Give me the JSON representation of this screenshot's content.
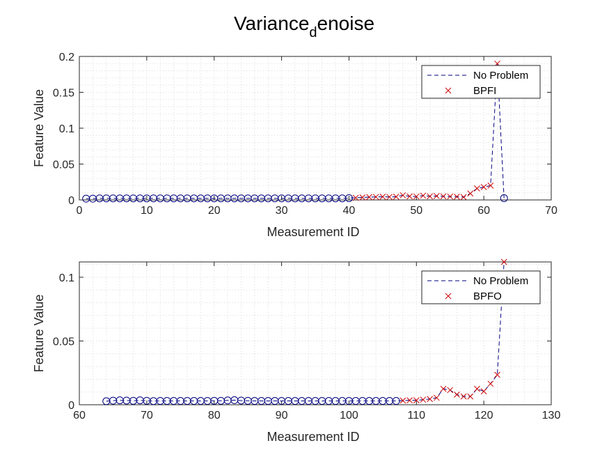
{
  "figure": {
    "title_main": "Variance",
    "title_sub": "d",
    "title_tail": "enoise"
  },
  "colors": {
    "no_problem": "#00007f",
    "fault": "#cc0000",
    "axis": "#262626",
    "grid": "#d9d9d9"
  },
  "chart_data": [
    {
      "type": "line",
      "xlabel": "Measurement ID",
      "ylabel": "Feature Value",
      "xlim": [
        0,
        70
      ],
      "ylim": [
        0,
        0.2
      ],
      "xticks": [
        0,
        10,
        20,
        30,
        40,
        50,
        60,
        70
      ],
      "yticks": [
        0,
        0.05,
        0.1,
        0.15,
        0.2
      ],
      "xtick_labels": [
        "0",
        "10",
        "20",
        "30",
        "40",
        "50",
        "60",
        "70"
      ],
      "ytick_labels": [
        "0",
        "0.05",
        "0.1",
        "0.15",
        "0.2"
      ],
      "grid": "on (major and minor, dotted)",
      "legend_position": "top-right",
      "series": [
        {
          "name": "No Problem",
          "style": "dashed line with circle markers",
          "x": [
            1,
            2,
            3,
            4,
            5,
            6,
            7,
            8,
            9,
            10,
            11,
            12,
            13,
            14,
            15,
            16,
            17,
            18,
            19,
            20,
            21,
            22,
            23,
            24,
            25,
            26,
            27,
            28,
            29,
            30,
            31,
            32,
            33,
            34,
            35,
            36,
            37,
            38,
            39,
            40,
            41,
            42,
            43,
            44,
            45,
            46,
            47,
            48,
            49,
            50,
            51,
            52,
            53,
            54,
            55,
            56,
            57,
            58,
            59,
            60,
            61,
            62,
            63
          ],
          "y": [
            0.0018,
            0.0018,
            0.0022,
            0.0022,
            0.0022,
            0.0022,
            0.0022,
            0.0022,
            0.0022,
            0.0022,
            0.0022,
            0.0022,
            0.0022,
            0.0022,
            0.0022,
            0.0022,
            0.0022,
            0.0022,
            0.0022,
            0.0022,
            0.0022,
            0.0022,
            0.0022,
            0.0022,
            0.0022,
            0.0022,
            0.0022,
            0.0022,
            0.0022,
            0.0022,
            0.0022,
            0.0022,
            0.0022,
            0.0022,
            0.0022,
            0.0022,
            0.0022,
            0.0022,
            0.0022,
            0.0025,
            0.003,
            0.0035,
            0.004,
            0.0042,
            0.0045,
            0.0042,
            0.0045,
            0.0065,
            0.005,
            0.0048,
            0.006,
            0.005,
            0.0055,
            0.005,
            0.0048,
            0.0045,
            0.004,
            0.009,
            0.016,
            0.018,
            0.02,
            0.19,
            0.0025
          ],
          "marker_x": [
            1,
            2,
            3,
            4,
            5,
            6,
            7,
            8,
            9,
            10,
            11,
            12,
            13,
            14,
            15,
            16,
            17,
            18,
            19,
            20,
            21,
            22,
            23,
            24,
            25,
            26,
            27,
            28,
            29,
            30,
            31,
            32,
            33,
            34,
            35,
            36,
            37,
            38,
            39,
            40,
            63
          ],
          "marker_y": [
            0.0018,
            0.0018,
            0.0022,
            0.0022,
            0.0022,
            0.0022,
            0.0022,
            0.0022,
            0.0022,
            0.0022,
            0.0022,
            0.0022,
            0.0022,
            0.0022,
            0.0022,
            0.0022,
            0.0022,
            0.0022,
            0.0022,
            0.0022,
            0.0022,
            0.0022,
            0.0022,
            0.0022,
            0.0022,
            0.0022,
            0.0022,
            0.0022,
            0.0022,
            0.0022,
            0.0022,
            0.0022,
            0.0022,
            0.0022,
            0.0022,
            0.0022,
            0.0022,
            0.0022,
            0.0022,
            0.0025,
            0.0025
          ]
        },
        {
          "name": "BPFI",
          "style": "x markers",
          "x": [
            41,
            42,
            43,
            44,
            45,
            46,
            47,
            48,
            49,
            50,
            51,
            52,
            53,
            54,
            55,
            56,
            57,
            58,
            59,
            60,
            61,
            62
          ],
          "y": [
            0.003,
            0.0035,
            0.004,
            0.0042,
            0.0045,
            0.0042,
            0.0045,
            0.0065,
            0.005,
            0.0048,
            0.006,
            0.005,
            0.0055,
            0.005,
            0.0048,
            0.0045,
            0.004,
            0.009,
            0.016,
            0.018,
            0.02,
            0.19
          ]
        }
      ]
    },
    {
      "type": "line",
      "xlabel": "Measurement ID",
      "ylabel": "Feature Value",
      "xlim": [
        60,
        130
      ],
      "ylim": [
        0,
        0.112
      ],
      "xticks": [
        60,
        70,
        80,
        90,
        100,
        110,
        120,
        130
      ],
      "yticks": [
        0,
        0.05,
        0.1
      ],
      "xtick_labels": [
        "60",
        "70",
        "80",
        "90",
        "100",
        "110",
        "120",
        "130"
      ],
      "ytick_labels": [
        "0",
        "0.05",
        "0.1"
      ],
      "grid": "on (major and minor, dotted)",
      "legend_position": "top-right",
      "series": [
        {
          "name": "No Problem",
          "style": "dashed line with circle markers",
          "x": [
            64,
            65,
            66,
            67,
            68,
            69,
            70,
            71,
            72,
            73,
            74,
            75,
            76,
            77,
            78,
            79,
            80,
            81,
            82,
            83,
            84,
            85,
            86,
            87,
            88,
            89,
            90,
            91,
            92,
            93,
            94,
            95,
            96,
            97,
            98,
            99,
            100,
            101,
            102,
            103,
            104,
            105,
            106,
            107,
            108,
            109,
            110,
            111,
            112,
            113,
            114,
            115,
            116,
            117,
            118,
            119,
            120,
            121,
            122,
            123
          ],
          "y": [
            0.0028,
            0.0032,
            0.0035,
            0.0033,
            0.0031,
            0.0035,
            0.0031,
            0.0029,
            0.003,
            0.003,
            0.003,
            0.003,
            0.003,
            0.003,
            0.003,
            0.003,
            0.0031,
            0.0031,
            0.0034,
            0.0036,
            0.0033,
            0.0031,
            0.003,
            0.003,
            0.003,
            0.003,
            0.003,
            0.003,
            0.003,
            0.003,
            0.003,
            0.003,
            0.003,
            0.003,
            0.003,
            0.003,
            0.003,
            0.003,
            0.003,
            0.003,
            0.003,
            0.003,
            0.003,
            0.003,
            0.0033,
            0.0035,
            0.0035,
            0.004,
            0.0045,
            0.0055,
            0.0125,
            0.0115,
            0.008,
            0.0065,
            0.0065,
            0.0125,
            0.0105,
            0.0165,
            0.0235,
            0.112
          ],
          "marker_x": [
            64,
            65,
            66,
            67,
            68,
            69,
            70,
            71,
            72,
            73,
            74,
            75,
            76,
            77,
            78,
            79,
            80,
            81,
            82,
            83,
            84,
            85,
            86,
            87,
            88,
            89,
            90,
            91,
            92,
            93,
            94,
            95,
            96,
            97,
            98,
            99,
            100,
            101,
            102,
            103,
            104,
            105,
            106,
            107
          ],
          "marker_y": [
            0.0028,
            0.0032,
            0.0035,
            0.0033,
            0.0031,
            0.0035,
            0.0031,
            0.0029,
            0.003,
            0.003,
            0.003,
            0.003,
            0.003,
            0.003,
            0.003,
            0.003,
            0.0031,
            0.0031,
            0.0034,
            0.0036,
            0.0033,
            0.0031,
            0.003,
            0.003,
            0.003,
            0.003,
            0.003,
            0.003,
            0.003,
            0.003,
            0.003,
            0.003,
            0.003,
            0.003,
            0.003,
            0.003,
            0.003,
            0.003,
            0.003,
            0.003,
            0.003,
            0.003,
            0.003,
            0.003
          ]
        },
        {
          "name": "BPFO",
          "style": "x markers",
          "x": [
            108,
            109,
            110,
            111,
            112,
            113,
            114,
            115,
            116,
            117,
            118,
            119,
            120,
            121,
            122,
            123
          ],
          "y": [
            0.0033,
            0.0035,
            0.0035,
            0.004,
            0.0045,
            0.0055,
            0.0125,
            0.0115,
            0.008,
            0.0065,
            0.0065,
            0.0125,
            0.0105,
            0.0165,
            0.0235,
            0.112
          ]
        }
      ]
    }
  ]
}
